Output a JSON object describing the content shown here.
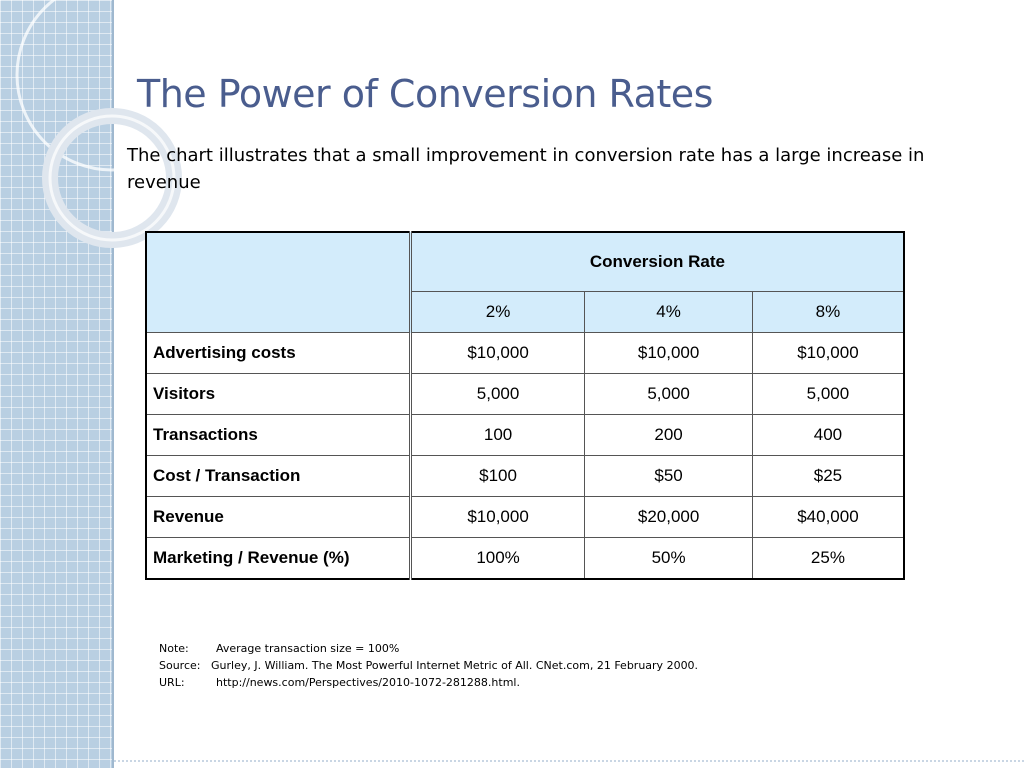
{
  "slide": {
    "title": "The Power of Conversion Rates",
    "subtitle": "The chart illustrates that a small improvement in conversion rate has a large increase in revenue"
  },
  "table": {
    "group_header": "Conversion Rate",
    "rate_columns": [
      "2%",
      "4%",
      "8%"
    ],
    "rows": [
      {
        "label": "Advertising costs",
        "values": [
          "$10,000",
          "$10,000",
          "$10,000"
        ]
      },
      {
        "label": "Visitors",
        "values": [
          "5,000",
          "5,000",
          "5,000"
        ]
      },
      {
        "label": "Transactions",
        "values": [
          "100",
          "200",
          "400"
        ]
      },
      {
        "label": "Cost / Transaction",
        "values": [
          "$100",
          "$50",
          "$25"
        ]
      },
      {
        "label": "Revenue",
        "values": [
          "$10,000",
          "$20,000",
          "$40,000"
        ]
      },
      {
        "label": "Marketing / Revenue (%)",
        "values": [
          "100%",
          "50%",
          "25%"
        ]
      }
    ]
  },
  "notes": {
    "note_key": "Note:",
    "note_text": "Average transaction size = 100%",
    "source_key": "Source:",
    "source_text": "Gurley, J. William. The Most Powerful Internet Metric of All.  CNet.com, 21 February 2000.",
    "url_key": "URL:",
    "url_text": "http://news.com/Perspectives/2010-1072-281288.html."
  },
  "colors": {
    "title": "#4a5d8e",
    "header_fill": "#d3ecfb",
    "side_band": "#b9cfe2"
  }
}
